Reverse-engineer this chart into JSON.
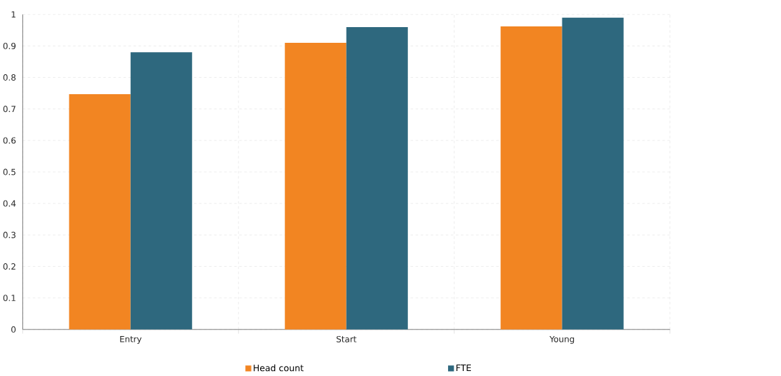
{
  "chart_data": {
    "type": "bar",
    "categories": [
      "Entry",
      "Start",
      "Young"
    ],
    "series": [
      {
        "name": "Head count",
        "color": "#f28522",
        "values": [
          0.747,
          0.91,
          0.962
        ]
      },
      {
        "name": "FTE",
        "color": "#2e687e",
        "values": [
          0.88,
          0.96,
          0.99
        ]
      }
    ],
    "ylim": [
      0,
      1
    ],
    "yticks": [
      0,
      0.1,
      0.2,
      0.3,
      0.4,
      0.5,
      0.6,
      0.7,
      0.8,
      0.9,
      1
    ],
    "grid": true,
    "legend": "bottom"
  }
}
